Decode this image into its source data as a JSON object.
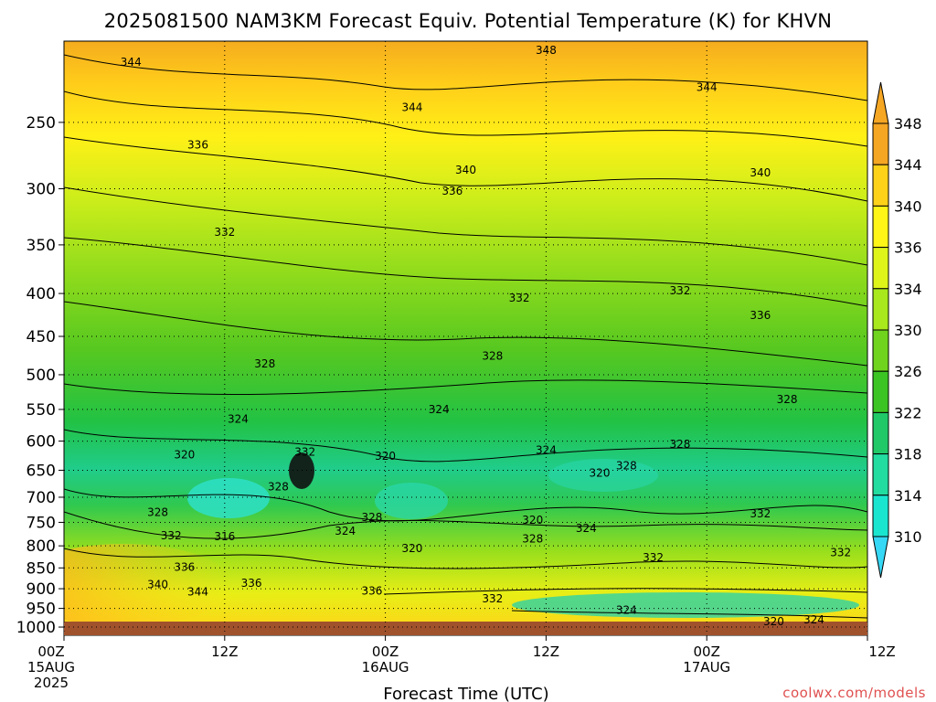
{
  "chart_data": {
    "type": "heatmap",
    "title": "2025081500 NAM3KM Forecast Equiv. Potential Temperature (K) for KHVN",
    "xlabel": "Forecast Time (UTC)",
    "ylabel": "",
    "y_scale": "log-pressure",
    "y_ticks": [
      "250",
      "300",
      "350",
      "400",
      "450",
      "500",
      "550",
      "600",
      "650",
      "700",
      "750",
      "800",
      "850",
      "900",
      "950",
      "1000"
    ],
    "y_tick_values": [
      250,
      300,
      350,
      400,
      450,
      500,
      550,
      600,
      650,
      700,
      750,
      800,
      850,
      900,
      950,
      1000
    ],
    "ylim": [
      200,
      1010
    ],
    "x_ticks": [
      {
        "hour": 0,
        "line1": "00Z",
        "line2": "15AUG",
        "line3": "2025"
      },
      {
        "hour": 12,
        "line1": "12Z",
        "line2": "",
        "line3": ""
      },
      {
        "hour": 24,
        "line1": "00Z",
        "line2": "16AUG",
        "line3": ""
      },
      {
        "hour": 36,
        "line1": "12Z",
        "line2": "",
        "line3": ""
      },
      {
        "hour": 48,
        "line1": "00Z",
        "line2": "17AUG",
        "line3": ""
      },
      {
        "hour": 60,
        "line1": "12Z",
        "line2": "",
        "line3": ""
      }
    ],
    "xlim": [
      0,
      60
    ],
    "grid": true,
    "colorbar": {
      "labels": [
        "348",
        "344",
        "340",
        "336",
        "334",
        "330",
        "326",
        "322",
        "318",
        "314",
        "310"
      ],
      "values": [
        348,
        344,
        340,
        336,
        334,
        330,
        326,
        322,
        318,
        314,
        310
      ],
      "colors": [
        "#f5a623",
        "#ffd21a",
        "#fff516",
        "#dff51a",
        "#a8e81c",
        "#70d41e",
        "#3cc424",
        "#20c868",
        "#22dca0",
        "#1ae6d0",
        "#00e8ff"
      ],
      "top_arrow_color": "#f5a623",
      "bottom_arrow_color": "#36d8f5"
    },
    "contour_labels": [
      {
        "text": "348",
        "hour": 36,
        "p": 205
      },
      {
        "text": "344",
        "hour": 5,
        "p": 212
      },
      {
        "text": "344",
        "hour": 26,
        "p": 240
      },
      {
        "text": "344",
        "hour": 48,
        "p": 227
      },
      {
        "text": "336",
        "hour": 10,
        "p": 266
      },
      {
        "text": "340",
        "hour": 30,
        "p": 285
      },
      {
        "text": "336",
        "hour": 29,
        "p": 302
      },
      {
        "text": "340",
        "hour": 52,
        "p": 287
      },
      {
        "text": "332",
        "hour": 12,
        "p": 338
      },
      {
        "text": "332",
        "hour": 34,
        "p": 405
      },
      {
        "text": "332",
        "hour": 46,
        "p": 397
      },
      {
        "text": "336",
        "hour": 52,
        "p": 425
      },
      {
        "text": "328",
        "hour": 15,
        "p": 485
      },
      {
        "text": "328",
        "hour": 32,
        "p": 475
      },
      {
        "text": "328",
        "hour": 54,
        "p": 535
      },
      {
        "text": "324",
        "hour": 13,
        "p": 565
      },
      {
        "text": "324",
        "hour": 28,
        "p": 550
      },
      {
        "text": "328",
        "hour": 46,
        "p": 605
      },
      {
        "text": "320",
        "hour": 9,
        "p": 623
      },
      {
        "text": "332",
        "hour": 18,
        "p": 618
      },
      {
        "text": "320",
        "hour": 24,
        "p": 625
      },
      {
        "text": "324",
        "hour": 36,
        "p": 615
      },
      {
        "text": "328",
        "hour": 42,
        "p": 642
      },
      {
        "text": "320",
        "hour": 40,
        "p": 655
      },
      {
        "text": "328",
        "hour": 16,
        "p": 680
      },
      {
        "text": "328",
        "hour": 7,
        "p": 730
      },
      {
        "text": "316",
        "hour": 12,
        "p": 780
      },
      {
        "text": "332",
        "hour": 8,
        "p": 778
      },
      {
        "text": "328",
        "hour": 23,
        "p": 740
      },
      {
        "text": "324",
        "hour": 21,
        "p": 768
      },
      {
        "text": "320",
        "hour": 35,
        "p": 745
      },
      {
        "text": "324",
        "hour": 39,
        "p": 762
      },
      {
        "text": "328",
        "hour": 35,
        "p": 785
      },
      {
        "text": "332",
        "hour": 52,
        "p": 732
      },
      {
        "text": "320",
        "hour": 26,
        "p": 806
      },
      {
        "text": "332",
        "hour": 44,
        "p": 826
      },
      {
        "text": "332",
        "hour": 58,
        "p": 815
      },
      {
        "text": "336",
        "hour": 9,
        "p": 848
      },
      {
        "text": "340",
        "hour": 7,
        "p": 890
      },
      {
        "text": "344",
        "hour": 10,
        "p": 908
      },
      {
        "text": "336",
        "hour": 14,
        "p": 886
      },
      {
        "text": "336",
        "hour": 23,
        "p": 905
      },
      {
        "text": "332",
        "hour": 32,
        "p": 925
      },
      {
        "text": "324",
        "hour": 42,
        "p": 955
      },
      {
        "text": "320",
        "hour": 53,
        "p": 985
      },
      {
        "text": "324",
        "hour": 56,
        "p": 980
      }
    ],
    "ground_color": "#a0522d"
  },
  "credit": "coolwx.com/models"
}
